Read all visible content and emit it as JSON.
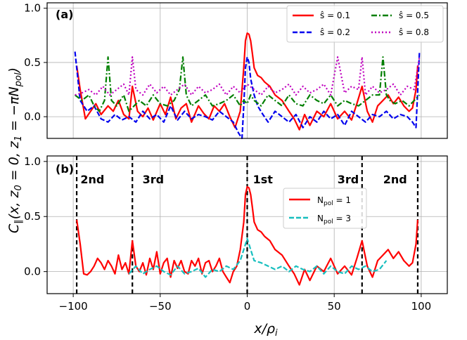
{
  "chart_data": [
    {
      "type": "line",
      "panel_label": "(a)",
      "xlim": [
        -115,
        115
      ],
      "ylim": [
        -0.2,
        1.05
      ],
      "xticks": [
        -100,
        -50,
        0,
        50,
        100
      ],
      "yticks": [
        0.0,
        0.5,
        1.0
      ],
      "ytick_labels": [
        "0.0",
        "0.5",
        "1.0"
      ],
      "grid": true,
      "legend_position": "top-right",
      "series": [
        {
          "name": "ŝ = 0.1",
          "color": "#ff0000",
          "dash": "solid",
          "x": [
            -98,
            -96,
            -93,
            -90,
            -87,
            -84,
            -80,
            -77,
            -74,
            -71,
            -68,
            -66,
            -63,
            -60,
            -57,
            -54,
            -50,
            -47,
            -44,
            -41,
            -38,
            -35,
            -32,
            -28,
            -25,
            -22,
            -19,
            -16,
            -13,
            -10,
            -7,
            -4,
            -2,
            -1,
            0,
            1,
            2,
            3,
            4,
            6,
            8,
            10,
            13,
            16,
            20,
            24,
            27,
            30,
            33,
            36,
            40,
            44,
            48,
            52,
            56,
            60,
            63,
            66,
            69,
            72,
            75,
            78,
            81,
            84,
            87,
            90,
            93,
            95,
            97,
            98
          ],
          "y": [
            0.47,
            0.25,
            -0.02,
            0.05,
            0.12,
            0.02,
            0.1,
            0.05,
            0.15,
            0.02,
            -0.02,
            0.28,
            0.05,
            0.0,
            0.08,
            -0.03,
            0.12,
            0.02,
            0.18,
            -0.02,
            0.08,
            0.12,
            -0.05,
            0.1,
            0.03,
            -0.02,
            0.1,
            0.05,
            0.12,
            0.0,
            -0.1,
            0.05,
            0.45,
            0.7,
            0.77,
            0.76,
            0.7,
            0.58,
            0.45,
            0.38,
            0.36,
            0.32,
            0.28,
            0.2,
            0.15,
            0.05,
            -0.02,
            -0.12,
            0.02,
            -0.08,
            0.05,
            0.0,
            0.12,
            -0.02,
            0.05,
            -0.03,
            0.12,
            0.28,
            0.05,
            -0.05,
            0.1,
            0.15,
            0.2,
            0.12,
            0.18,
            0.1,
            0.05,
            0.08,
            0.25,
            0.47
          ]
        },
        {
          "name": "ŝ = 0.2",
          "color": "#0000ee",
          "dash": "dashed",
          "x": [
            -99,
            -96,
            -92,
            -88,
            -84,
            -80,
            -76,
            -72,
            -68,
            -64,
            -60,
            -56,
            -52,
            -48,
            -44,
            -40,
            -36,
            -32,
            -28,
            -24,
            -20,
            -16,
            -12,
            -8,
            -5,
            -3,
            -2,
            -1,
            0,
            1,
            2,
            4,
            6,
            9,
            12,
            16,
            20,
            24,
            28,
            32,
            36,
            40,
            44,
            48,
            52,
            56,
            60,
            64,
            68,
            72,
            76,
            80,
            84,
            88,
            92,
            95,
            97,
            99
          ],
          "y": [
            0.6,
            0.15,
            0.05,
            0.1,
            -0.02,
            -0.05,
            0.02,
            -0.03,
            0.0,
            -0.05,
            0.05,
            -0.02,
            0.02,
            -0.05,
            0.1,
            -0.03,
            0.05,
            -0.02,
            0.02,
            0.0,
            -0.03,
            0.05,
            0.0,
            -0.05,
            -0.15,
            -0.2,
            0.1,
            0.45,
            0.55,
            0.5,
            0.35,
            0.2,
            0.1,
            0.02,
            -0.05,
            0.05,
            0.0,
            -0.05,
            0.02,
            -0.1,
            0.0,
            -0.05,
            0.05,
            -0.02,
            0.02,
            -0.08,
            0.05,
            0.0,
            -0.05,
            0.02,
            0.0,
            0.05,
            -0.02,
            0.02,
            0.0,
            -0.05,
            -0.1,
            0.6
          ]
        },
        {
          "name": "ŝ = 0.5",
          "color": "#007f00",
          "dash": "dashdot",
          "x": [
            -99,
            -95,
            -91,
            -88,
            -85,
            -82,
            -80,
            -78,
            -75,
            -71,
            -68,
            -65,
            -62,
            -58,
            -54,
            -50,
            -46,
            -42,
            -39,
            -37,
            -35,
            -32,
            -28,
            -24,
            -20,
            -16,
            -12,
            -8,
            -4,
            -2,
            0,
            2,
            4,
            8,
            12,
            16,
            20,
            24,
            28,
            32,
            36,
            40,
            44,
            48,
            52,
            56,
            60,
            64,
            68,
            72,
            76,
            78,
            80,
            82,
            85,
            89,
            93,
            96,
            99
          ],
          "y": [
            0.2,
            0.15,
            0.2,
            0.1,
            0.05,
            0.15,
            0.55,
            0.15,
            0.1,
            0.2,
            0.05,
            0.1,
            0.15,
            0.1,
            0.2,
            0.12,
            0.1,
            0.15,
            0.25,
            0.55,
            0.2,
            0.1,
            0.15,
            0.2,
            0.1,
            0.12,
            0.15,
            0.2,
            0.1,
            0.15,
            0.12,
            0.2,
            0.15,
            0.1,
            0.2,
            0.15,
            0.1,
            0.2,
            0.12,
            0.1,
            0.2,
            0.15,
            0.12,
            0.2,
            0.1,
            0.15,
            0.12,
            0.1,
            0.15,
            0.2,
            0.2,
            0.55,
            0.2,
            0.15,
            0.12,
            0.15,
            0.1,
            0.15,
            0.2
          ]
        },
        {
          "name": "ŝ = 0.8",
          "color": "#bf00bf",
          "dash": "dotted",
          "x": [
            -99,
            -95,
            -91,
            -87,
            -83,
            -79,
            -75,
            -71,
            -68,
            -66,
            -64,
            -60,
            -56,
            -52,
            -48,
            -44,
            -40,
            -36,
            -32,
            -28,
            -24,
            -20,
            -16,
            -12,
            -8,
            -4,
            0,
            4,
            8,
            12,
            16,
            20,
            24,
            28,
            32,
            36,
            40,
            44,
            48,
            52,
            56,
            60,
            64,
            66,
            68,
            72,
            76,
            80,
            84,
            88,
            92,
            96,
            99
          ],
          "y": [
            0.2,
            0.22,
            0.25,
            0.2,
            0.28,
            0.2,
            0.25,
            0.3,
            0.2,
            0.55,
            0.25,
            0.2,
            0.3,
            0.22,
            0.28,
            0.2,
            0.25,
            0.3,
            0.2,
            0.28,
            0.22,
            0.25,
            0.3,
            0.2,
            0.28,
            0.22,
            0.3,
            0.25,
            0.2,
            0.28,
            0.22,
            0.25,
            0.3,
            0.2,
            0.28,
            0.22,
            0.25,
            0.3,
            0.2,
            0.55,
            0.22,
            0.28,
            0.25,
            0.55,
            0.2,
            0.28,
            0.22,
            0.25,
            0.3,
            0.2,
            0.28,
            0.25,
            0.55
          ]
        }
      ]
    },
    {
      "type": "line",
      "panel_label": "(b)",
      "xlim": [
        -115,
        115
      ],
      "ylim": [
        -0.2,
        1.05
      ],
      "xticks": [
        -100,
        -50,
        0,
        50,
        100
      ],
      "xtick_labels": [
        "−100",
        "−50",
        "0",
        "50",
        "100"
      ],
      "yticks": [
        0.0,
        0.5,
        1.0
      ],
      "ytick_labels": [
        "0.0",
        "0.5",
        "1.0"
      ],
      "grid": true,
      "legend_position": "center-right",
      "vlines": [
        -98,
        -66,
        0,
        66,
        98
      ],
      "region_labels": [
        {
          "text": "2nd",
          "x": -89
        },
        {
          "text": "3rd",
          "x": -54
        },
        {
          "text": "1st",
          "x": 9
        },
        {
          "text": "3rd",
          "x": 58
        },
        {
          "text": "2nd",
          "x": 85
        }
      ],
      "series": [
        {
          "name": "N_pol = 1",
          "color": "#ff0000",
          "dash": "solid",
          "x": [
            -98,
            -96,
            -94,
            -92,
            -90,
            -88,
            -86,
            -84,
            -82,
            -80,
            -78,
            -76,
            -74,
            -72,
            -70,
            -68,
            -66,
            -64,
            -62,
            -60,
            -58,
            -56,
            -54,
            -52,
            -50,
            -48,
            -46,
            -44,
            -42,
            -40,
            -38,
            -36,
            -34,
            -32,
            -30,
            -28,
            -26,
            -24,
            -22,
            -20,
            -18,
            -16,
            -14,
            -12,
            -10,
            -8,
            -6,
            -4,
            -2,
            -1,
            0,
            1,
            2,
            3,
            4,
            6,
            8,
            10,
            13,
            16,
            20,
            24,
            27,
            30,
            33,
            36,
            40,
            44,
            48,
            52,
            56,
            60,
            63,
            66,
            69,
            72,
            75,
            78,
            81,
            84,
            87,
            90,
            93,
            95,
            97,
            98
          ],
          "y": [
            0.47,
            0.25,
            -0.02,
            -0.03,
            0.0,
            0.05,
            0.12,
            0.08,
            0.02,
            0.1,
            0.05,
            -0.02,
            0.15,
            0.02,
            0.08,
            -0.02,
            0.28,
            0.05,
            0.0,
            0.08,
            -0.03,
            0.12,
            0.02,
            0.18,
            -0.02,
            0.08,
            0.12,
            -0.05,
            0.1,
            0.03,
            0.1,
            0.0,
            -0.02,
            0.1,
            0.05,
            0.12,
            -0.02,
            0.08,
            0.1,
            0.0,
            0.05,
            0.12,
            0.0,
            -0.05,
            -0.1,
            0.0,
            0.05,
            0.2,
            0.45,
            0.7,
            0.77,
            0.76,
            0.7,
            0.58,
            0.45,
            0.38,
            0.36,
            0.32,
            0.28,
            0.2,
            0.15,
            0.05,
            -0.02,
            -0.12,
            0.02,
            -0.08,
            0.05,
            0.0,
            0.12,
            -0.02,
            0.05,
            -0.03,
            0.12,
            0.28,
            0.05,
            -0.05,
            0.1,
            0.15,
            0.2,
            0.12,
            0.18,
            0.1,
            0.05,
            0.08,
            0.25,
            0.47
          ]
        },
        {
          "name": "N_pol = 3",
          "color": "#17bfbf",
          "dash": "dashed",
          "x": [
            -68,
            -64,
            -60,
            -56,
            -52,
            -48,
            -44,
            -40,
            -36,
            -32,
            -28,
            -24,
            -20,
            -16,
            -12,
            -8,
            -4,
            -2,
            0,
            2,
            4,
            8,
            12,
            16,
            20,
            24,
            28,
            32,
            36,
            40,
            44,
            48,
            52,
            56,
            60,
            64,
            68,
            72,
            76,
            80
          ],
          "y": [
            -0.02,
            0.05,
            -0.02,
            0.02,
            0.05,
            0.0,
            -0.03,
            0.05,
            -0.02,
            0.0,
            0.03,
            -0.05,
            0.02,
            0.0,
            0.05,
            0.02,
            0.1,
            0.2,
            0.3,
            0.2,
            0.1,
            0.08,
            0.05,
            0.02,
            0.05,
            0.0,
            0.05,
            0.02,
            0.0,
            0.05,
            -0.02,
            0.05,
            0.0,
            -0.02,
            0.05,
            0.02,
            0.05,
            0.0,
            0.02,
            0.1
          ]
        }
      ]
    }
  ],
  "shared_axis": {
    "xlabel": "x/ρi",
    "ylabel": "C∥(x, z0 = 0, z1 = −πNpol)"
  }
}
